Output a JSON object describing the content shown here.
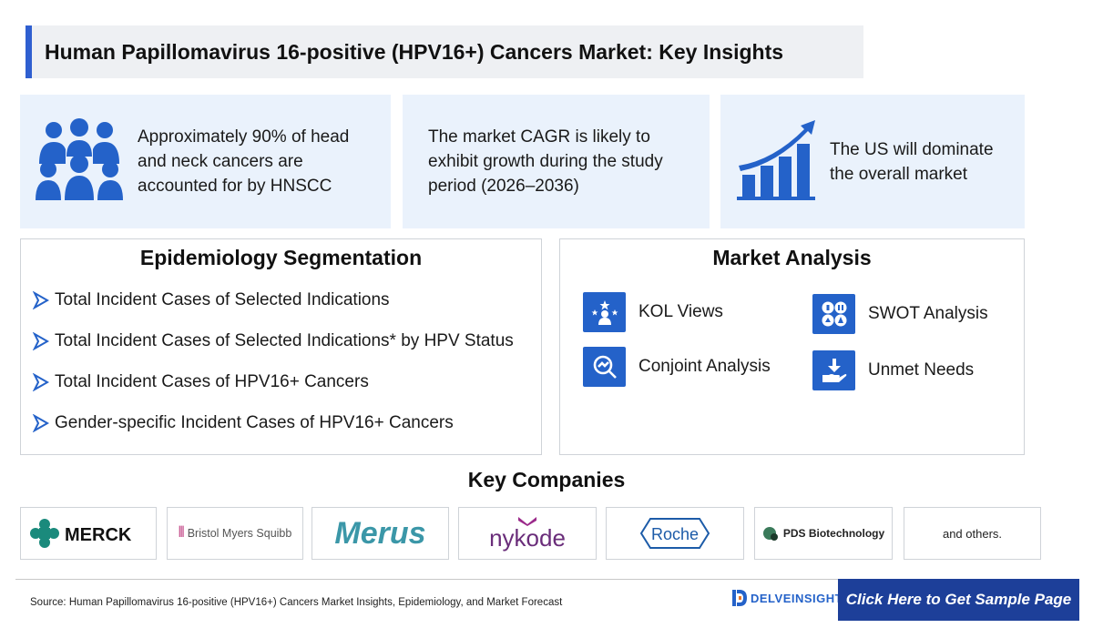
{
  "title": "Human Papillomavirus 16-positive (HPV16+) Cancers Market: Key Insights",
  "insights": [
    {
      "icon": "people-group-icon",
      "lines": [
        "Approximately 90% of head",
        "and neck cancers are",
        "accounted for by HNSCC"
      ]
    },
    {
      "icon": "",
      "lines": [
        "The market CAGR is likely to",
        "exhibit growth during the study",
        "period (2026–2036)"
      ]
    },
    {
      "icon": "growth-chart-icon",
      "lines": [
        "The US will dominate",
        "the overall market"
      ]
    }
  ],
  "epidemiology": {
    "heading": "Epidemiology Segmentation",
    "items": [
      "Total Incident Cases of Selected Indications",
      "Total Incident Cases of Selected Indications* by HPV Status",
      "Total Incident Cases of HPV16+ Cancers",
      "Gender-specific Incident Cases of HPV16+ Cancers"
    ]
  },
  "market_analysis": {
    "heading": "Market Analysis",
    "items": [
      {
        "label": "KOL Views",
        "icon": "kol-expert-icon"
      },
      {
        "label": "SWOT Analysis",
        "icon": "swot-icon"
      },
      {
        "label": "Conjoint Analysis",
        "icon": "conjoint-analysis-icon"
      },
      {
        "label": "Unmet Needs",
        "icon": "hand-download-icon"
      }
    ]
  },
  "key_companies": {
    "heading": "Key Companies",
    "logos": [
      "MERCK",
      "Bristol Myers Squibb",
      "Merus",
      "nykode",
      "Roche",
      "PDS Biotechnology"
    ],
    "others": "and others."
  },
  "footer": {
    "source": "Source: Human Papillomavirus 16-positive (HPV16+) Cancers Market Insights, Epidemiology, and Market Forecast",
    "brand": "DELVEINSIGHT",
    "cta": "Click Here to Get Sample Page"
  },
  "colors": {
    "accent": "#2462c9",
    "cta_bg": "#1d3f99",
    "insight_bg": "#eaf2fc",
    "title_bar": "#2f5fd0"
  }
}
